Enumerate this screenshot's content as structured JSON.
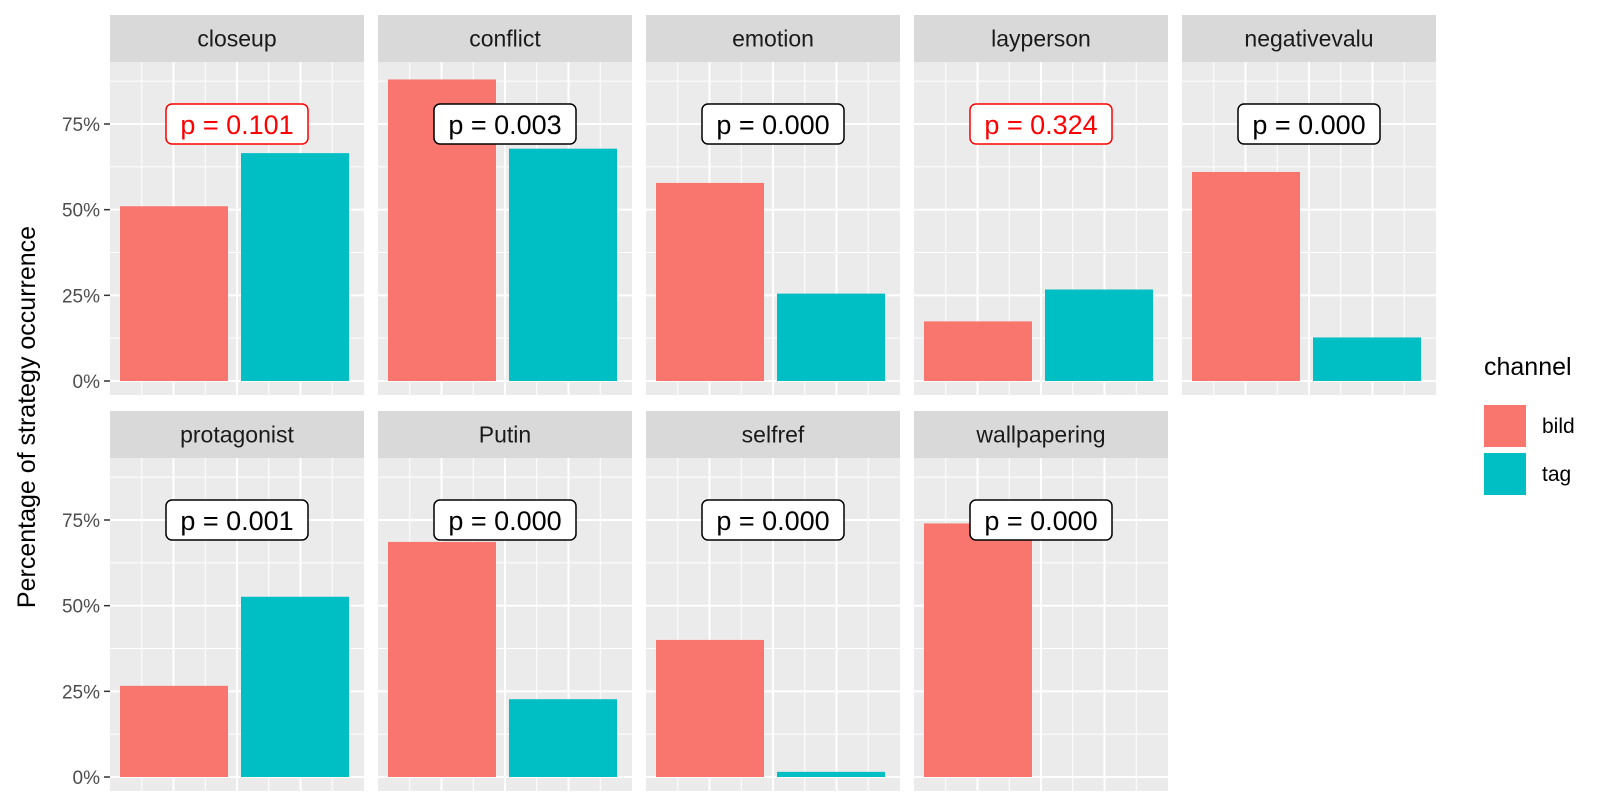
{
  "chart_data": {
    "type": "bar",
    "ylabel": "Percentage of strategy occurrence",
    "xlabel": "",
    "ylim": [
      0,
      0.94
    ],
    "yticks": [
      0,
      0.25,
      0.5,
      0.75
    ],
    "ytick_labels": [
      "0%",
      "25%",
      "50%",
      "75%"
    ],
    "grid": true,
    "legend": {
      "title": "channel",
      "position": "right",
      "entries": [
        {
          "name": "bild",
          "color": "#F8766D"
        },
        {
          "name": "tag",
          "color": "#00BFC4"
        }
      ]
    },
    "facets": [
      {
        "label": "closeup",
        "values": {
          "bild": 0.51,
          "tag": 0.665
        },
        "p_label": "p = 0.101",
        "p_significant": false
      },
      {
        "label": "conflict",
        "values": {
          "bild": 0.88,
          "tag": 0.678
        },
        "p_label": "p = 0.003",
        "p_significant": true
      },
      {
        "label": "emotion",
        "values": {
          "bild": 0.578,
          "tag": 0.255
        },
        "p_label": "p = 0.000",
        "p_significant": true
      },
      {
        "label": "layperson",
        "values": {
          "bild": 0.174,
          "tag": 0.267
        },
        "p_label": "p = 0.324",
        "p_significant": false
      },
      {
        "label": "negativevalu",
        "values": {
          "bild": 0.61,
          "tag": 0.127
        },
        "p_label": "p = 0.000",
        "p_significant": true
      },
      {
        "label": "protagonist",
        "values": {
          "bild": 0.266,
          "tag": 0.526
        },
        "p_label": "p = 0.001",
        "p_significant": true
      },
      {
        "label": "Putin",
        "values": {
          "bild": 0.686,
          "tag": 0.227
        },
        "p_label": "p = 0.000",
        "p_significant": true
      },
      {
        "label": "selfref",
        "values": {
          "bild": 0.4,
          "tag": 0.015
        },
        "p_label": "p = 0.000",
        "p_significant": true
      },
      {
        "label": "wallpapering",
        "values": {
          "bild": 0.74,
          "tag": 0
        },
        "p_label": "p = 0.000",
        "p_significant": true
      }
    ],
    "colors": {
      "panel_bg": "#EBEBEB",
      "strip_bg": "#D9D9D9",
      "grid": "#FFFFFF",
      "significant_text": "#000000",
      "nonsignificant_text": "#FF0000"
    }
  }
}
